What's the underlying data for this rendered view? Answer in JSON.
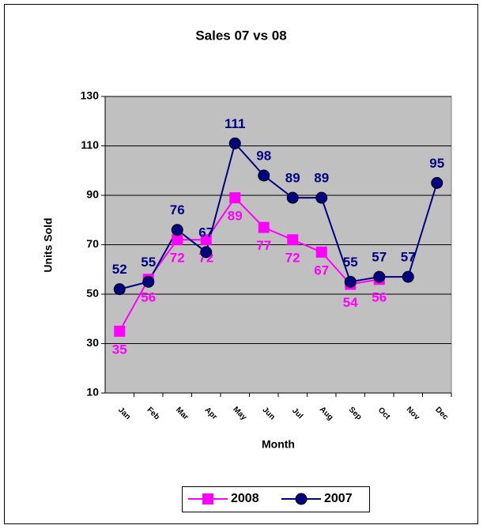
{
  "chart_data": {
    "type": "line",
    "title": "Sales 07 vs 08",
    "x_label": "Month",
    "y_label": "Units Sold",
    "categories": [
      "Jan",
      "Feb",
      "Mar",
      "Apr",
      "May",
      "Jun",
      "Jul",
      "Aug",
      "Sep",
      "Oct",
      "Nov",
      "Dec"
    ],
    "series": [
      {
        "name": "2008",
        "color": "#ff00ff",
        "marker": "square",
        "values": [
          35,
          56,
          72,
          72,
          89,
          77,
          72,
          67,
          54,
          56,
          null,
          null
        ]
      },
      {
        "name": "2007",
        "color": "#000080",
        "marker": "circle",
        "values": [
          52,
          55,
          76,
          67,
          111,
          98,
          89,
          89,
          55,
          57,
          57,
          95
        ]
      }
    ],
    "ylim": [
      10,
      130
    ],
    "yticks": [
      10,
      30,
      50,
      70,
      90,
      110,
      130
    ],
    "grid": true,
    "legend": "bottom"
  }
}
